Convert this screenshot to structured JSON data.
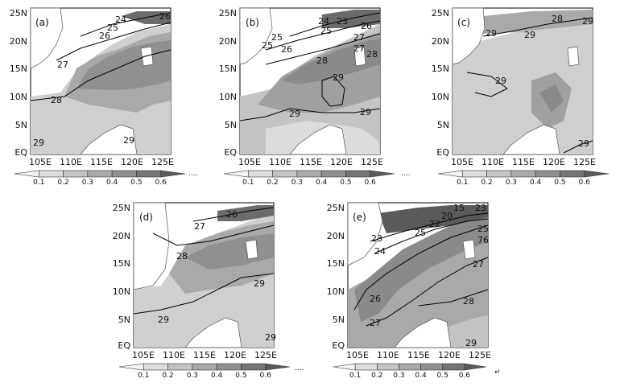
{
  "panels": [
    {
      "label": "(a)",
      "contours": [
        "24",
        "25",
        "26",
        "27",
        "28",
        "29",
        "29",
        "26"
      ]
    },
    {
      "label": "(b)",
      "contours": [
        "25",
        "26",
        "27",
        "25",
        "23",
        "24",
        "25",
        "26",
        "27",
        "28",
        "28",
        "29",
        "29",
        "29"
      ]
    },
    {
      "label": "(c)",
      "contours": [
        "28",
        "29",
        "29",
        "29",
        "29",
        "29"
      ]
    },
    {
      "label": "(d)",
      "contours": [
        "26",
        "27",
        "28",
        "29",
        "29",
        "29"
      ]
    },
    {
      "label": "(e)",
      "contours": [
        "23",
        "24",
        "25",
        "26",
        "27",
        "28",
        "25",
        "27",
        "22",
        "23",
        "20",
        "15",
        "76",
        "29"
      ]
    }
  ],
  "axes": {
    "x_ticks": [
      "105E",
      "110E",
      "115E",
      "120E",
      "125E"
    ],
    "y_ticks": [
      "25N",
      "20N",
      "15N",
      "10N",
      "5N",
      "EQ"
    ]
  },
  "colorbar": {
    "ticks": [
      "0.1",
      "0.2",
      "0.3",
      "0.4",
      "0.5",
      "0.6"
    ],
    "shades": [
      "#f4f4f4",
      "#dcdcdc",
      "#c4c4c4",
      "#a9a9a9",
      "#8f8f8f",
      "#757575",
      "#5a5a5a"
    ]
  },
  "trail_marks": [
    "....",
    "....",
    "...."
  ],
  "end_mark": "↵"
}
